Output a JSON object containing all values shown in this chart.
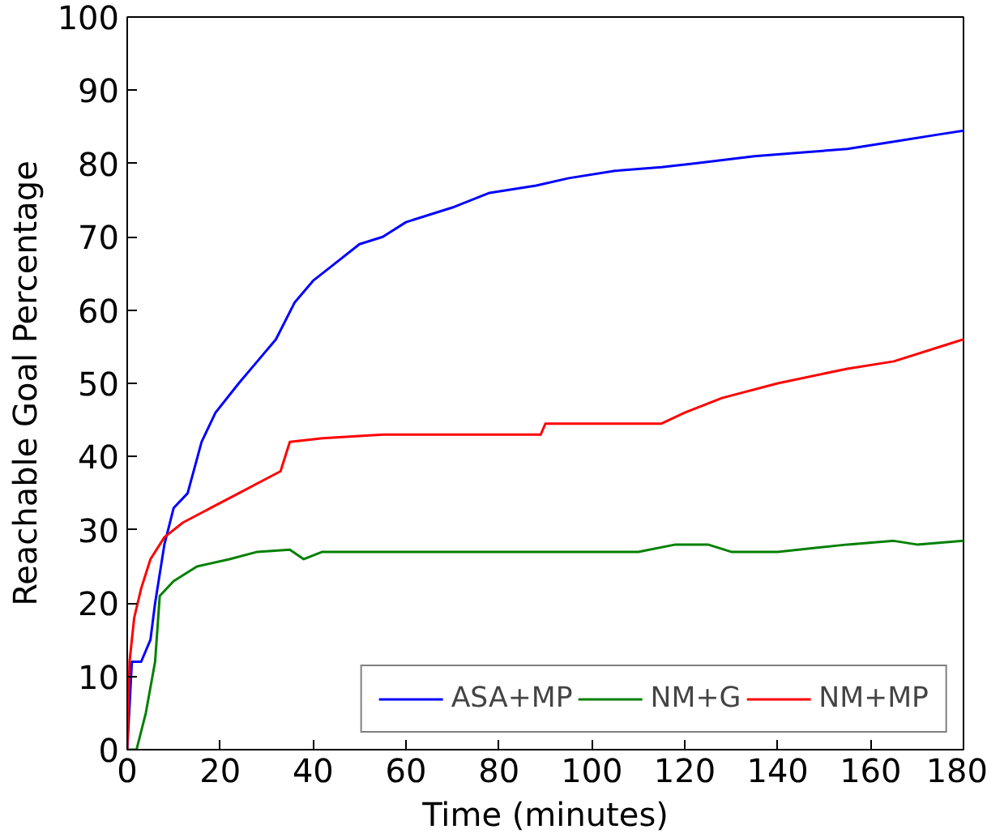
{
  "chart_data": {
    "type": "line",
    "xlabel": "Time (minutes)",
    "ylabel": "Reachable Goal Percentage",
    "xlim": [
      0,
      180
    ],
    "ylim": [
      0,
      100
    ],
    "xticks": [
      0,
      20,
      40,
      60,
      80,
      100,
      120,
      140,
      160,
      180
    ],
    "yticks": [
      0,
      10,
      20,
      30,
      40,
      50,
      60,
      70,
      80,
      90,
      100
    ],
    "grid": false,
    "legend": "bottom right",
    "line_style": "solid",
    "marker": "none",
    "series": [
      {
        "name": "ASA+MP",
        "color": "#0000ff",
        "x": [
          0,
          1,
          3,
          5,
          6,
          8,
          10,
          13,
          16,
          19,
          24,
          28,
          32,
          36,
          40,
          44,
          50,
          55,
          60,
          70,
          78,
          88,
          95,
          105,
          115,
          122,
          135,
          145,
          155,
          165,
          175,
          180
        ],
        "values": [
          0,
          12,
          12,
          15,
          20,
          28,
          33,
          35,
          42,
          46,
          50,
          53,
          56,
          61,
          64,
          66,
          69,
          70,
          72,
          74,
          76,
          77,
          78,
          79,
          79.5,
          80,
          81,
          81.5,
          82,
          83,
          84,
          84.5
        ]
      },
      {
        "name": "NM+G",
        "color": "#008000",
        "x": [
          0,
          2,
          4,
          6,
          7,
          10,
          15,
          22,
          28,
          35,
          38,
          42,
          60,
          110,
          118,
          125,
          130,
          140,
          155,
          165,
          170,
          180
        ],
        "values": [
          0,
          0,
          5,
          12,
          21,
          23,
          25,
          26,
          27,
          27.3,
          26,
          27,
          27,
          27,
          28,
          28,
          27,
          27,
          28,
          28.5,
          28,
          28.5
        ]
      },
      {
        "name": "NM+MP",
        "color": "#ff0000",
        "x": [
          0,
          0.5,
          1.5,
          3,
          5,
          8,
          12,
          18,
          24,
          30,
          33,
          35,
          42,
          55,
          80,
          89,
          90,
          115,
          120,
          128,
          140,
          155,
          165,
          175,
          180
        ],
        "values": [
          0,
          12,
          18,
          22,
          26,
          29,
          31,
          33,
          35,
          37,
          38,
          42,
          42.5,
          43,
          43,
          43,
          44.5,
          44.5,
          46,
          48,
          50,
          52,
          53,
          55,
          56
        ]
      }
    ]
  }
}
